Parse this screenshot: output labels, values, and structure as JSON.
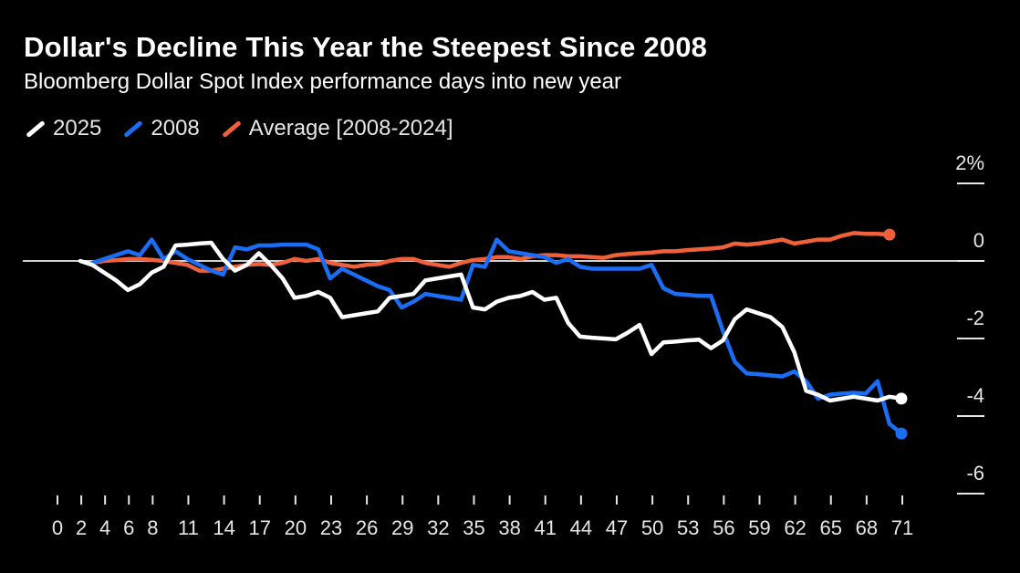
{
  "title": "Dollar's Decline This Year the Steepest Since 2008",
  "subtitle": "Bloomberg Dollar Spot Index performance days into new year",
  "legend": [
    {
      "label": "2025",
      "color": "#ffffff"
    },
    {
      "label": "2008",
      "color": "#1a6ef5"
    },
    {
      "label": "Average [2008-2024]",
      "color": "#f0603a"
    }
  ],
  "chart_data": {
    "type": "line",
    "title": "Dollar's Decline This Year the Steepest Since 2008",
    "subtitle": "Bloomberg Dollar Spot Index performance days into new year",
    "xlabel": "",
    "ylabel": "",
    "xlim": [
      0,
      71
    ],
    "ylim": [
      -6,
      2
    ],
    "x_ticks": [
      0,
      2,
      4,
      6,
      8,
      11,
      14,
      17,
      20,
      23,
      26,
      29,
      32,
      35,
      38,
      41,
      44,
      47,
      50,
      53,
      56,
      59,
      62,
      65,
      68,
      71
    ],
    "y_ticks": [
      2,
      0,
      -2,
      -4,
      -6
    ],
    "y_tick_labels": [
      "2%",
      "0",
      "-2",
      "-4",
      "-6"
    ],
    "zero_line": true,
    "grid": false,
    "legend_position": "top-left",
    "series": [
      {
        "name": "2025",
        "color": "#ffffff",
        "end_marker": true,
        "points": [
          [
            1,
            0.0
          ],
          [
            2,
            -0.1
          ],
          [
            3,
            -0.3
          ],
          [
            4,
            -0.5
          ],
          [
            5,
            -0.75
          ],
          [
            6,
            -0.6
          ],
          [
            7,
            -0.3
          ],
          [
            8,
            -0.15
          ],
          [
            9,
            0.4
          ],
          [
            10,
            0.42
          ],
          [
            11,
            0.45
          ],
          [
            12,
            0.47
          ],
          [
            13,
            0.05
          ],
          [
            14,
            -0.25
          ],
          [
            15,
            -0.1
          ],
          [
            16,
            0.2
          ],
          [
            17,
            -0.1
          ],
          [
            18,
            -0.45
          ],
          [
            19,
            -0.95
          ],
          [
            20,
            -0.9
          ],
          [
            21,
            -0.8
          ],
          [
            22,
            -0.95
          ],
          [
            23,
            -1.45
          ],
          [
            24,
            -1.4
          ],
          [
            25,
            -1.35
          ],
          [
            26,
            -1.3
          ],
          [
            27,
            -0.95
          ],
          [
            28,
            -0.9
          ],
          [
            29,
            -0.85
          ],
          [
            30,
            -0.5
          ],
          [
            31,
            -0.45
          ],
          [
            32,
            -0.4
          ],
          [
            33,
            -0.35
          ],
          [
            34,
            -1.2
          ],
          [
            35,
            -1.25
          ],
          [
            36,
            -1.05
          ],
          [
            37,
            -0.95
          ],
          [
            38,
            -0.9
          ],
          [
            39,
            -0.8
          ],
          [
            40,
            -1.0
          ],
          [
            41,
            -0.95
          ],
          [
            42,
            -1.6
          ],
          [
            43,
            -1.95
          ],
          [
            44,
            -1.98
          ],
          [
            45,
            -2.0
          ],
          [
            46,
            -2.02
          ],
          [
            47,
            -1.85
          ],
          [
            48,
            -1.65
          ],
          [
            49,
            -2.4
          ],
          [
            50,
            -2.1
          ],
          [
            51,
            -2.08
          ],
          [
            52,
            -2.05
          ],
          [
            53,
            -2.03
          ],
          [
            54,
            -2.25
          ],
          [
            55,
            -2.05
          ],
          [
            56,
            -1.5
          ],
          [
            57,
            -1.25
          ],
          [
            58,
            -1.35
          ],
          [
            59,
            -1.45
          ],
          [
            60,
            -1.7
          ],
          [
            61,
            -2.35
          ],
          [
            62,
            -3.35
          ],
          [
            63,
            -3.45
          ],
          [
            64,
            -3.6
          ],
          [
            65,
            -3.55
          ],
          [
            66,
            -3.5
          ],
          [
            67,
            -3.55
          ],
          [
            68,
            -3.6
          ],
          [
            69,
            -3.5
          ],
          [
            70,
            -3.55
          ]
        ]
      },
      {
        "name": "2008",
        "color": "#1a6ef5",
        "end_marker": true,
        "points": [
          [
            2,
            -0.05
          ],
          [
            3,
            0.05
          ],
          [
            4,
            0.15
          ],
          [
            5,
            0.25
          ],
          [
            6,
            0.15
          ],
          [
            7,
            0.55
          ],
          [
            8,
            0.05
          ],
          [
            9,
            0.25
          ],
          [
            10,
            0.05
          ],
          [
            11,
            -0.1
          ],
          [
            12,
            -0.25
          ],
          [
            13,
            -0.35
          ],
          [
            14,
            0.35
          ],
          [
            15,
            0.3
          ],
          [
            16,
            0.4
          ],
          [
            17,
            0.4
          ],
          [
            18,
            0.42
          ],
          [
            19,
            0.42
          ],
          [
            20,
            0.42
          ],
          [
            21,
            0.3
          ],
          [
            22,
            -0.45
          ],
          [
            23,
            -0.2
          ],
          [
            24,
            -0.35
          ],
          [
            25,
            -0.5
          ],
          [
            26,
            -0.65
          ],
          [
            27,
            -0.75
          ],
          [
            28,
            -1.2
          ],
          [
            29,
            -1.05
          ],
          [
            30,
            -0.85
          ],
          [
            31,
            -0.9
          ],
          [
            32,
            -0.95
          ],
          [
            33,
            -1.0
          ],
          [
            34,
            -0.1
          ],
          [
            35,
            -0.15
          ],
          [
            36,
            0.55
          ],
          [
            37,
            0.25
          ],
          [
            38,
            0.2
          ],
          [
            39,
            0.15
          ],
          [
            40,
            0.1
          ],
          [
            41,
            -0.05
          ],
          [
            42,
            0.05
          ],
          [
            43,
            -0.15
          ],
          [
            44,
            -0.2
          ],
          [
            45,
            -0.2
          ],
          [
            46,
            -0.2
          ],
          [
            47,
            -0.2
          ],
          [
            48,
            -0.2
          ],
          [
            49,
            -0.1
          ],
          [
            50,
            -0.7
          ],
          [
            51,
            -0.85
          ],
          [
            52,
            -0.87
          ],
          [
            53,
            -0.9
          ],
          [
            54,
            -0.9
          ],
          [
            55,
            -1.8
          ],
          [
            56,
            -2.6
          ],
          [
            57,
            -2.9
          ],
          [
            58,
            -2.92
          ],
          [
            59,
            -2.95
          ],
          [
            60,
            -2.98
          ],
          [
            61,
            -2.85
          ],
          [
            62,
            -3.1
          ],
          [
            63,
            -3.55
          ],
          [
            64,
            -3.45
          ],
          [
            65,
            -3.42
          ],
          [
            66,
            -3.4
          ],
          [
            67,
            -3.42
          ],
          [
            68,
            -3.1
          ],
          [
            69,
            -4.2
          ],
          [
            70,
            -4.45
          ]
        ]
      },
      {
        "name": "Average [2008-2024]",
        "color": "#f0603a",
        "end_marker": true,
        "points": [
          [
            2,
            -0.05
          ],
          [
            3,
            0.0
          ],
          [
            4,
            0.02
          ],
          [
            5,
            0.05
          ],
          [
            6,
            0.05
          ],
          [
            7,
            0.03
          ],
          [
            8,
            0.0
          ],
          [
            9,
            -0.05
          ],
          [
            10,
            -0.1
          ],
          [
            11,
            -0.25
          ],
          [
            12,
            -0.25
          ],
          [
            13,
            -0.2
          ],
          [
            14,
            -0.15
          ],
          [
            15,
            -0.1
          ],
          [
            16,
            -0.08
          ],
          [
            17,
            -0.1
          ],
          [
            18,
            -0.05
          ],
          [
            19,
            0.05
          ],
          [
            20,
            0.0
          ],
          [
            21,
            0.05
          ],
          [
            22,
            -0.05
          ],
          [
            23,
            -0.1
          ],
          [
            24,
            -0.15
          ],
          [
            25,
            -0.1
          ],
          [
            26,
            -0.08
          ],
          [
            27,
            0.0
          ],
          [
            28,
            0.05
          ],
          [
            29,
            0.05
          ],
          [
            30,
            -0.05
          ],
          [
            31,
            -0.1
          ],
          [
            32,
            -0.15
          ],
          [
            33,
            -0.05
          ],
          [
            34,
            0.02
          ],
          [
            35,
            0.05
          ],
          [
            36,
            0.1
          ],
          [
            37,
            0.1
          ],
          [
            38,
            0.05
          ],
          [
            39,
            0.12
          ],
          [
            40,
            0.15
          ],
          [
            41,
            0.15
          ],
          [
            42,
            0.12
          ],
          [
            43,
            0.12
          ],
          [
            44,
            0.1
          ],
          [
            45,
            0.08
          ],
          [
            46,
            0.15
          ],
          [
            47,
            0.18
          ],
          [
            48,
            0.2
          ],
          [
            49,
            0.22
          ],
          [
            50,
            0.25
          ],
          [
            51,
            0.25
          ],
          [
            52,
            0.28
          ],
          [
            53,
            0.3
          ],
          [
            54,
            0.32
          ],
          [
            55,
            0.35
          ],
          [
            56,
            0.45
          ],
          [
            57,
            0.42
          ],
          [
            58,
            0.45
          ],
          [
            59,
            0.5
          ],
          [
            60,
            0.55
          ],
          [
            61,
            0.45
          ],
          [
            62,
            0.5
          ],
          [
            63,
            0.55
          ],
          [
            64,
            0.55
          ],
          [
            65,
            0.65
          ],
          [
            66,
            0.72
          ],
          [
            67,
            0.7
          ],
          [
            68,
            0.7
          ],
          [
            69,
            0.68
          ]
        ]
      }
    ]
  }
}
